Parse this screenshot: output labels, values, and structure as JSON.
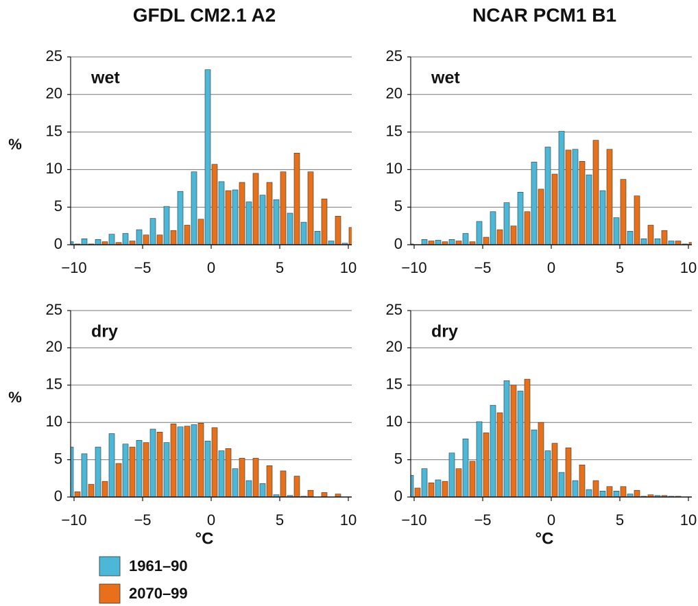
{
  "chart_data": [
    {
      "type": "histogram",
      "title": "GFDL CM2.1 A2",
      "annotation": "wet",
      "ylabel": "%",
      "bins": [
        -10.5,
        -9.5,
        -8.5,
        -7.5,
        -6.5,
        -5.5,
        -4.5,
        -3.5,
        -2.5,
        -1.5,
        -0.5,
        0.5,
        1.5,
        2.5,
        3.5,
        4.5,
        5.5,
        6.5,
        7.5,
        8.5,
        9.5,
        10.5
      ],
      "series": [
        {
          "name": "1961–90",
          "color": "#4bb8d8",
          "values": [
            0.4,
            0.8,
            0.7,
            1.4,
            1.5,
            2.0,
            3.5,
            5.1,
            7.1,
            9.7,
            23.3,
            8.4,
            7.3,
            5.7,
            6.6,
            6.0,
            4.2,
            3.0,
            1.8,
            0.5,
            0.2
          ]
        },
        {
          "name": "2070–99",
          "color": "#e8701a",
          "values": [
            0.1,
            0.1,
            0.4,
            0.3,
            0.5,
            1.3,
            1.3,
            1.9,
            2.6,
            3.4,
            10.7,
            7.2,
            8.3,
            9.5,
            8.3,
            9.7,
            12.2,
            9.7,
            6.1,
            3.8,
            2.3
          ]
        }
      ],
      "xlim": [
        -10.25,
        10.25
      ],
      "xticks": [
        {
          "value": -10,
          "label": "−10"
        },
        {
          "value": -5,
          "label": "−5"
        },
        0,
        5,
        10
      ],
      "ylim": [
        0,
        25
      ],
      "yticks": [
        0,
        5,
        10,
        15,
        20,
        25
      ],
      "grid": true
    },
    {
      "type": "histogram",
      "title": "NCAR PCM1 B1",
      "annotation": "wet",
      "bins": [
        -10.5,
        -9.5,
        -8.5,
        -7.5,
        -6.5,
        -5.5,
        -4.5,
        -3.5,
        -2.5,
        -1.5,
        -0.5,
        0.5,
        1.5,
        2.5,
        3.5,
        4.5,
        5.5,
        6.5,
        7.5,
        8.5,
        9.5,
        10.5
      ],
      "series": [
        {
          "color": "#4bb8d8",
          "values": [
            0.1,
            0.7,
            0.6,
            0.7,
            1.5,
            3.1,
            4.4,
            5.6,
            7.0,
            11.0,
            13.0,
            15.1,
            12.7,
            9.3,
            7.2,
            3.6,
            1.8,
            0.8,
            0.8,
            0.5,
            0.1
          ]
        },
        {
          "color": "#e8701a",
          "values": [
            0.0,
            0.5,
            0.4,
            0.5,
            0.4,
            1.0,
            2.0,
            2.5,
            4.4,
            7.4,
            9.4,
            12.6,
            11.1,
            13.9,
            12.7,
            8.7,
            6.5,
            2.6,
            1.9,
            0.5,
            0.3
          ]
        }
      ],
      "xlim": [
        -10.25,
        10.25
      ],
      "xticks": [
        {
          "value": -10,
          "label": "−10"
        },
        {
          "value": -5,
          "label": "−5"
        },
        0,
        5,
        10
      ],
      "ylim": [
        0,
        25
      ],
      "yticks": [
        0,
        5,
        10,
        15,
        20,
        25
      ],
      "grid": true
    },
    {
      "type": "histogram",
      "annotation": "dry",
      "ylabel": "%",
      "xlabel": "°C",
      "bins": [
        -10.5,
        -9.5,
        -8.5,
        -7.5,
        -6.5,
        -5.5,
        -4.5,
        -3.5,
        -2.5,
        -1.5,
        -0.5,
        0.5,
        1.5,
        2.5,
        3.5,
        4.5,
        5.5,
        6.5,
        7.5,
        8.5,
        9.5,
        10.5
      ],
      "series": [
        {
          "color": "#4bb8d8",
          "values": [
            6.7,
            5.8,
            6.7,
            8.5,
            7.1,
            7.6,
            9.1,
            7.3,
            9.4,
            9.7,
            7.5,
            6.2,
            3.8,
            2.2,
            1.8,
            0.3,
            0.2,
            0.1,
            0.0,
            0.0,
            0.0
          ]
        },
        {
          "color": "#e8701a",
          "values": [
            0.7,
            1.7,
            2.1,
            4.5,
            6.7,
            7.3,
            8.7,
            9.8,
            9.5,
            9.9,
            9.3,
            6.5,
            5.2,
            5.2,
            4.2,
            3.5,
            2.8,
            0.9,
            0.6,
            0.4,
            0.0
          ]
        }
      ],
      "xlim": [
        -10.25,
        10.25
      ],
      "xticks": [
        {
          "value": -10,
          "label": "−10"
        },
        {
          "value": -5,
          "label": "−5"
        },
        0,
        5,
        10
      ],
      "ylim": [
        0,
        25
      ],
      "yticks": [
        0,
        5,
        10,
        15,
        20,
        25
      ],
      "grid": true
    },
    {
      "type": "histogram",
      "annotation": "dry",
      "xlabel": "°C",
      "bins": [
        -10.5,
        -9.5,
        -8.5,
        -7.5,
        -6.5,
        -5.5,
        -4.5,
        -3.5,
        -2.5,
        -1.5,
        -0.5,
        0.5,
        1.5,
        2.5,
        3.5,
        4.5,
        5.5,
        6.5,
        7.5,
        8.5,
        9.5,
        10.5
      ],
      "series": [
        {
          "color": "#4bb8d8",
          "values": [
            2.9,
            3.8,
            2.3,
            5.9,
            7.8,
            10.1,
            12.3,
            15.6,
            14.2,
            9.0,
            6.2,
            3.3,
            2.2,
            1.0,
            0.8,
            0.8,
            0.4,
            0.1,
            0.2,
            0.1,
            0.0
          ]
        },
        {
          "color": "#e8701a",
          "values": [
            1.2,
            1.9,
            2.1,
            3.8,
            4.8,
            8.6,
            11.3,
            15.0,
            15.8,
            10.0,
            7.2,
            6.6,
            4.3,
            2.2,
            1.4,
            1.4,
            0.9,
            0.3,
            0.2,
            0.1,
            0.0
          ]
        }
      ],
      "xlim": [
        -10.25,
        10.25
      ],
      "xticks": [
        {
          "value": -10,
          "label": "−10"
        },
        {
          "value": -5,
          "label": "−5"
        },
        0,
        5,
        10
      ],
      "ylim": [
        0,
        25
      ],
      "yticks": [
        0,
        5,
        10,
        15,
        20,
        25
      ],
      "grid": true
    }
  ]
}
